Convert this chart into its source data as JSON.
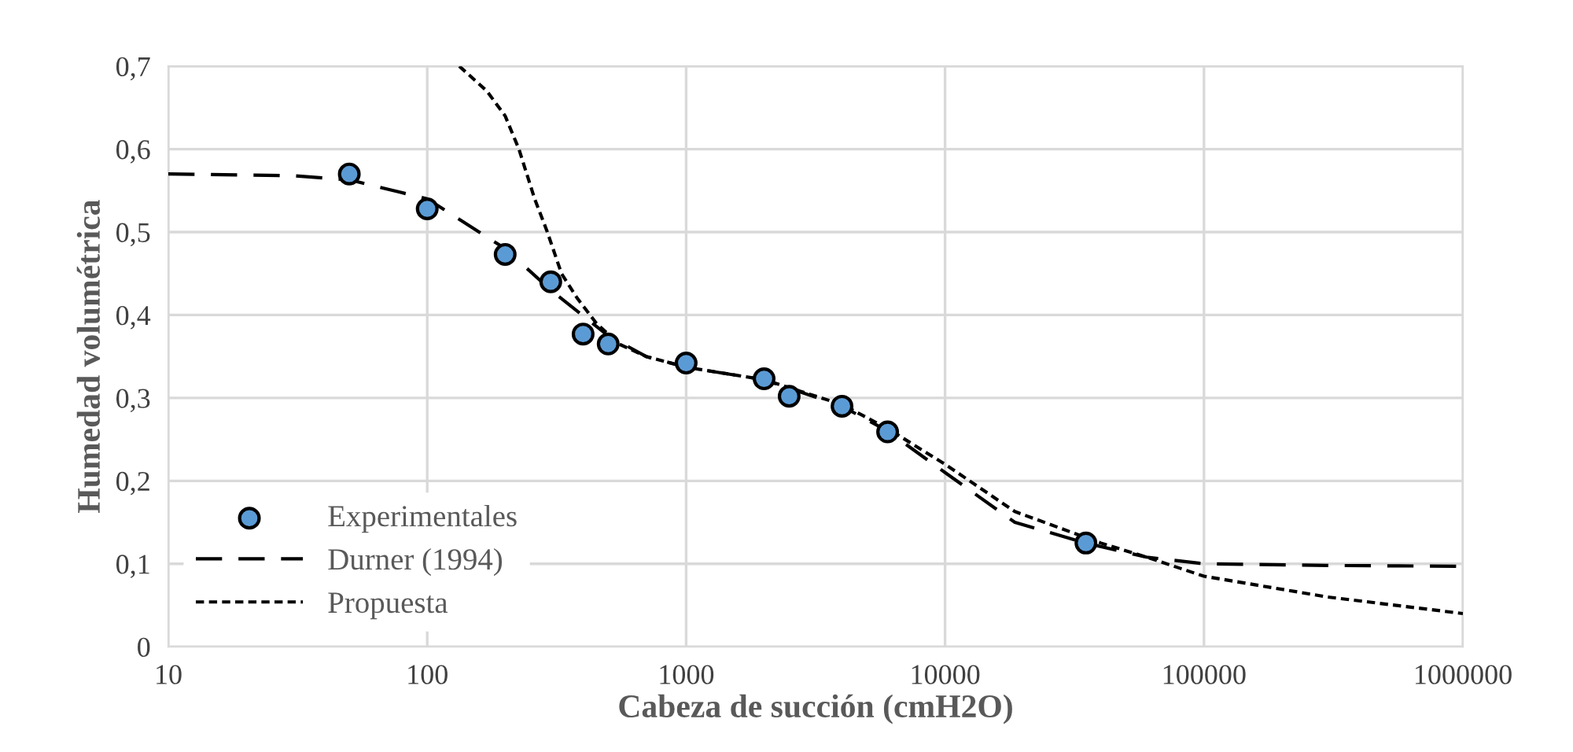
{
  "chart_data": {
    "type": "line",
    "xlabel": "Cabeza de succión (cmH2O)",
    "ylabel": "Humedad volumétrica",
    "log": "x",
    "xlim": [
      10,
      1000000
    ],
    "xticks": [
      10,
      100,
      1000,
      10000,
      100000,
      1000000
    ],
    "ylim": [
      0,
      0.7
    ],
    "yticks": [
      {
        "value": 0,
        "label": "0"
      },
      {
        "value": 0.1,
        "label": "0,1"
      },
      {
        "value": 0.2,
        "label": "0,2"
      },
      {
        "value": 0.3,
        "label": "0,3"
      },
      {
        "value": 0.4,
        "label": "0,4"
      },
      {
        "value": 0.5,
        "label": "0,5"
      },
      {
        "value": 0.6,
        "label": "0,6"
      },
      {
        "value": 0.7,
        "label": "0,7"
      }
    ],
    "grid": true,
    "legend": "bottom left",
    "series": [
      {
        "name": "Experimentales",
        "type": "scatter",
        "color": "#5b9bd5",
        "marker": "circle",
        "x": [
          50,
          100,
          200,
          300,
          400,
          500,
          1000,
          2000,
          2500,
          4000,
          6000,
          35000
        ],
        "values": [
          0.57,
          0.528,
          0.473,
          0.44,
          0.377,
          0.365,
          0.342,
          0.323,
          0.302,
          0.29,
          0.259,
          0.125
        ]
      },
      {
        "name": "Durner (1994)",
        "color": "#000000",
        "line_style": "dashed",
        "x": [
          10,
          30,
          50,
          100,
          200,
          300,
          500,
          700,
          1000,
          2000,
          4000,
          6000,
          10000,
          18600,
          35000,
          60000,
          100000,
          300000,
          1000000
        ],
        "values": [
          0.57,
          0.568,
          0.563,
          0.54,
          0.48,
          0.43,
          0.375,
          0.35,
          0.337,
          0.322,
          0.29,
          0.26,
          0.21,
          0.15,
          0.125,
          0.108,
          0.1,
          0.098,
          0.097
        ]
      },
      {
        "name": "Propuesta",
        "color": "#000000",
        "line_style": "dotted",
        "x": [
          133,
          170,
          200,
          226,
          260,
          291,
          330,
          380,
          450,
          550,
          700,
          1000,
          2000,
          4000,
          6000,
          10000,
          18600,
          40000,
          60000,
          100000,
          300000,
          1000000
        ],
        "values": [
          0.7,
          0.67,
          0.64,
          0.6,
          0.54,
          0.5,
          0.45,
          0.42,
          0.39,
          0.365,
          0.35,
          0.337,
          0.322,
          0.292,
          0.263,
          0.22,
          0.163,
          0.125,
          0.108,
          0.085,
          0.06,
          0.04
        ]
      }
    ]
  }
}
